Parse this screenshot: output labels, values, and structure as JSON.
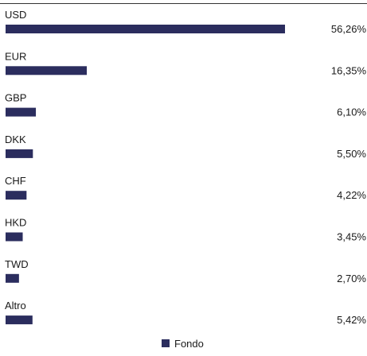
{
  "chart_data": {
    "type": "bar",
    "orientation": "horizontal",
    "categories": [
      "USD",
      "EUR",
      "GBP",
      "DKK",
      "CHF",
      "HKD",
      "TWD",
      "Altro"
    ],
    "series": [
      {
        "name": "Fondo",
        "values": [
          56.26,
          16.35,
          6.1,
          5.5,
          4.22,
          3.45,
          2.7,
          5.42
        ],
        "labels": [
          "56,26%",
          "16,35%",
          "6,10%",
          "5,50%",
          "4,22%",
          "3,45%",
          "2,70%",
          "5,42%"
        ]
      }
    ],
    "xlim": [
      0,
      56.26
    ],
    "grid": false,
    "legend_position": "bottom-center",
    "bar_color": "#2b2d5e"
  }
}
